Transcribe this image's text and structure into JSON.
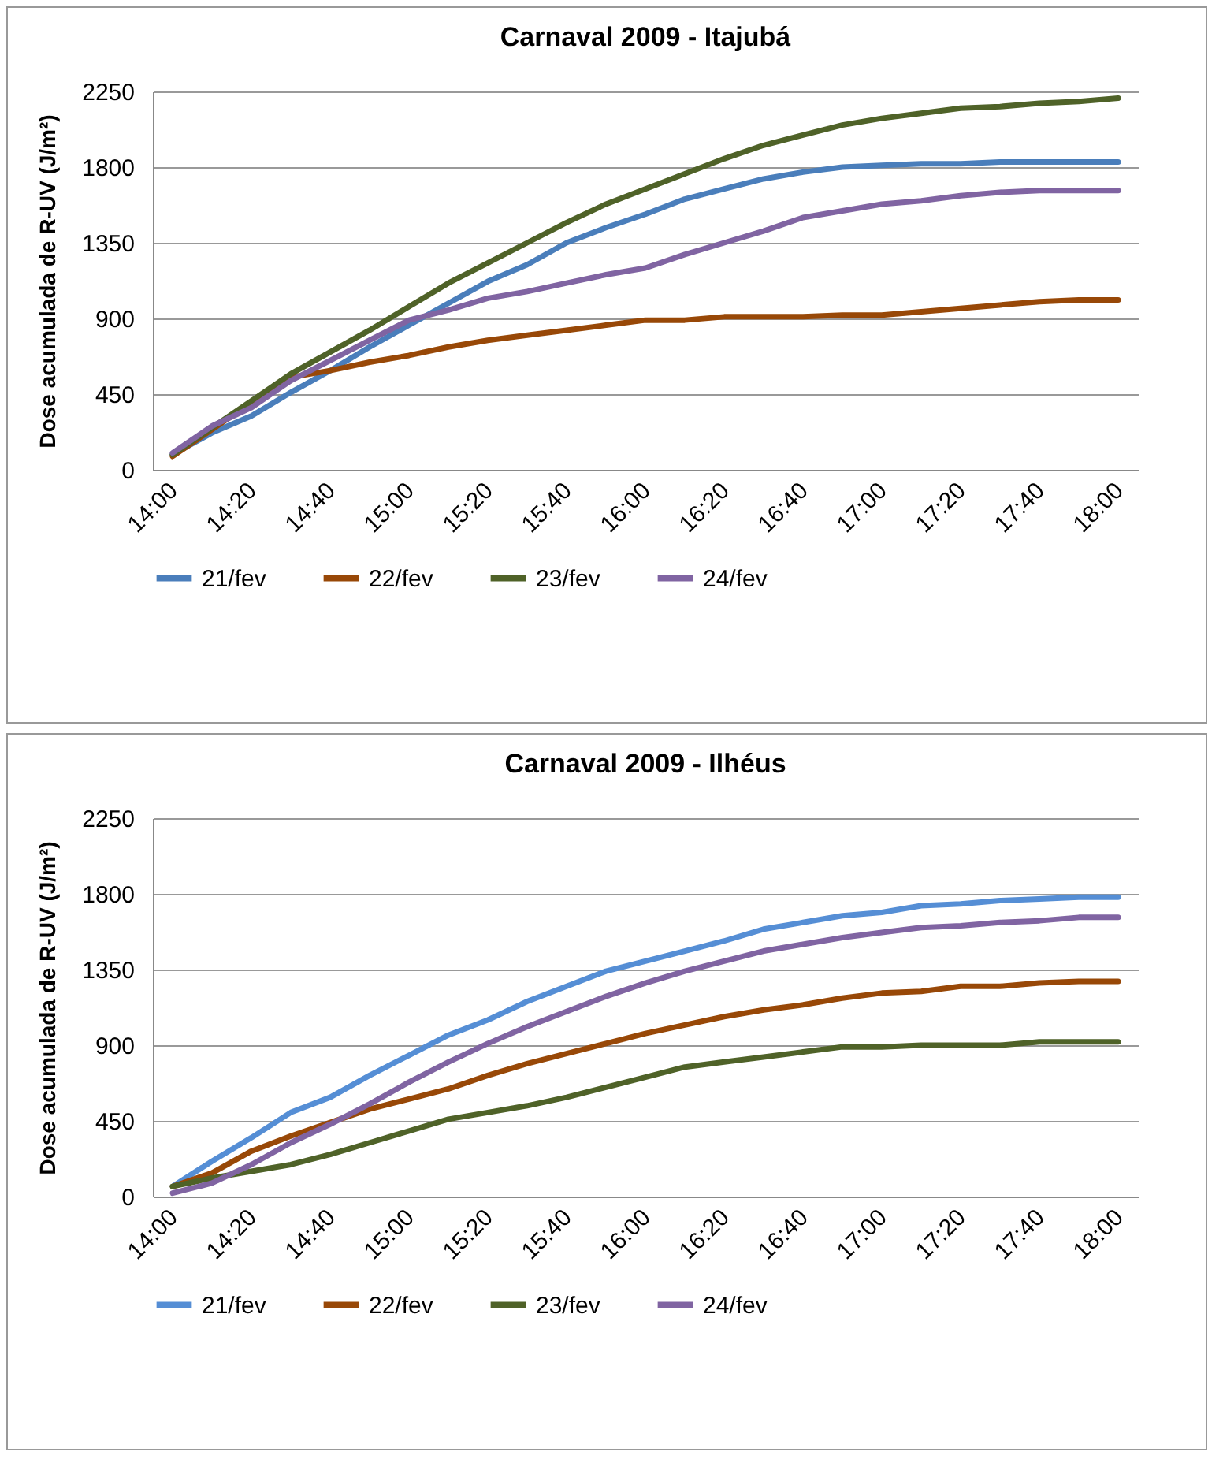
{
  "chart_data": [
    {
      "type": "line",
      "title": "Carnaval 2009 - Itajubá",
      "ylabel": "Dose acumulada de R-UV (J/m²)",
      "categories": [
        "14:00",
        null,
        "14:20",
        null,
        "14:40",
        null,
        "15:00",
        null,
        "15:20",
        null,
        "15:40",
        null,
        "16:00",
        null,
        "16:20",
        null,
        "16:40",
        null,
        "17:00",
        null,
        "17:20",
        null,
        "17:40",
        null,
        "18:00"
      ],
      "series": [
        {
          "name": "21/fev",
          "color": "#4a7ebb",
          "values": [
            90,
            220,
            320,
            460,
            590,
            730,
            860,
            990,
            1120,
            1220,
            1350,
            1440,
            1520,
            1610,
            1670,
            1730,
            1770,
            1800,
            1810,
            1820,
            1820,
            1830,
            1830,
            1830,
            1830
          ]
        },
        {
          "name": "22/fev",
          "color": "#984807",
          "values": [
            80,
            240,
            400,
            550,
            590,
            640,
            680,
            730,
            770,
            800,
            830,
            860,
            890,
            890,
            910,
            910,
            910,
            920,
            920,
            940,
            960,
            980,
            1000,
            1010,
            1010
          ]
        },
        {
          "name": "23/fev",
          "color": "#4f6228",
          "values": [
            90,
            250,
            410,
            570,
            700,
            830,
            970,
            1110,
            1230,
            1350,
            1470,
            1580,
            1670,
            1760,
            1850,
            1930,
            1990,
            2050,
            2090,
            2120,
            2150,
            2160,
            2180,
            2190,
            2210
          ]
        },
        {
          "name": "24/fev",
          "color": "#8064a2",
          "values": [
            100,
            260,
            370,
            530,
            650,
            770,
            890,
            950,
            1020,
            1060,
            1110,
            1160,
            1200,
            1280,
            1350,
            1420,
            1500,
            1540,
            1580,
            1600,
            1630,
            1650,
            1660,
            1660,
            1660
          ]
        }
      ],
      "ylim": [
        0,
        2250
      ],
      "yticks": [
        0,
        450,
        900,
        1350,
        1800,
        2250
      ],
      "grid": "y",
      "legend": "bottom"
    },
    {
      "type": "line",
      "title": "Carnaval 2009 - Ilhéus",
      "ylabel": "Dose acumulada de R-UV (J/m²)",
      "categories": [
        "14:00",
        null,
        "14:20",
        null,
        "14:40",
        null,
        "15:00",
        null,
        "15:20",
        null,
        "15:40",
        null,
        "16:00",
        null,
        "16:20",
        null,
        "16:40",
        null,
        "17:00",
        null,
        "17:20",
        null,
        "17:40",
        null,
        "18:00"
      ],
      "series": [
        {
          "name": "21/fev",
          "color": "#558ed5",
          "values": [
            60,
            210,
            350,
            500,
            590,
            720,
            840,
            960,
            1050,
            1160,
            1250,
            1340,
            1400,
            1460,
            1520,
            1590,
            1630,
            1670,
            1690,
            1730,
            1740,
            1760,
            1770,
            1780,
            1780
          ]
        },
        {
          "name": "22/fev",
          "color": "#984807",
          "values": [
            60,
            140,
            270,
            360,
            440,
            520,
            580,
            640,
            720,
            790,
            850,
            910,
            970,
            1020,
            1070,
            1110,
            1140,
            1180,
            1210,
            1220,
            1250,
            1250,
            1270,
            1280,
            1280
          ]
        },
        {
          "name": "23/fev",
          "color": "#4f6228",
          "values": [
            60,
            110,
            150,
            190,
            250,
            320,
            390,
            460,
            500,
            540,
            590,
            650,
            710,
            770,
            800,
            830,
            860,
            890,
            890,
            900,
            900,
            900,
            920,
            920,
            920
          ]
        },
        {
          "name": "24/fev",
          "color": "#8064a2",
          "values": [
            20,
            80,
            190,
            320,
            430,
            550,
            680,
            800,
            910,
            1010,
            1100,
            1190,
            1270,
            1340,
            1400,
            1460,
            1500,
            1540,
            1570,
            1600,
            1610,
            1630,
            1640,
            1660,
            1660
          ]
        }
      ],
      "ylim": [
        0,
        2250
      ],
      "yticks": [
        0,
        450,
        900,
        1350,
        1800,
        2250
      ],
      "grid": "y",
      "legend": "bottom"
    }
  ]
}
